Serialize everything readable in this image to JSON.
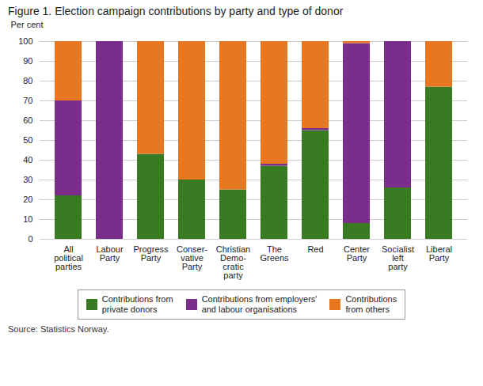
{
  "chart_data": {
    "type": "bar",
    "stacked": true,
    "title": "Figure 1. Election campaign contributions by party and type of donor",
    "ylabel": "Per cent",
    "source": "Source: Statistics Norway.",
    "categories": [
      "All\npolitical\nparties",
      "Labour\nParty",
      "Progress\nParty",
      "Conser-\nvative\nParty",
      "Christian\nDemo-\ncratic\nparty",
      "The\nGreens",
      "Red",
      "Center\nParty",
      "Socialist\nleft\nparty",
      "Liberal\nParty"
    ],
    "series": [
      {
        "name": "Contributions from\nprivate donors",
        "color": "#3a7a23",
        "values": [
          22,
          0,
          43,
          30,
          25,
          37,
          55,
          8,
          26,
          77
        ]
      },
      {
        "name": "Contributions from employers'\nand labour organisations",
        "color": "#7b2d8b",
        "values": [
          48,
          100,
          0,
          0,
          0,
          1,
          1,
          91,
          74,
          0
        ]
      },
      {
        "name": "Contributions\nfrom others",
        "color": "#e87722",
        "values": [
          30,
          0,
          57,
          70,
          75,
          62,
          44,
          1,
          0,
          23
        ]
      }
    ],
    "ylim": [
      0,
      100
    ],
    "yticks": [
      0,
      10,
      20,
      30,
      40,
      50,
      60,
      70,
      80,
      90,
      100
    ],
    "grid": true,
    "legend": "bottom"
  }
}
